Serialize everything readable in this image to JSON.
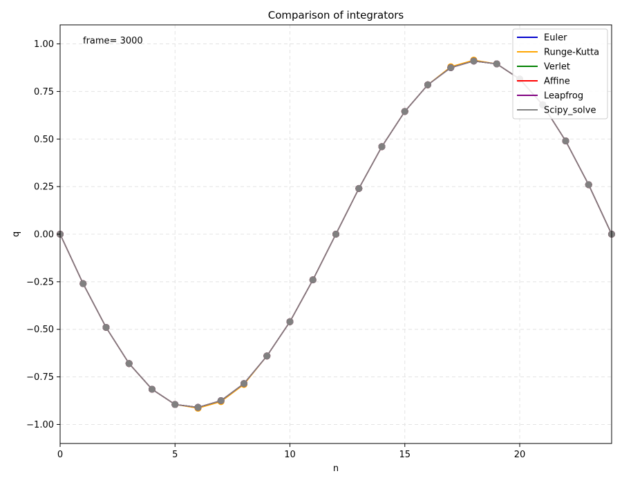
{
  "chart_data": {
    "type": "line",
    "title": "Comparison of integrators",
    "xlabel": "n",
    "ylabel": "q",
    "annotation": "frame= 3000",
    "xlim": [
      0,
      24
    ],
    "ylim": [
      -1.1,
      1.1
    ],
    "xticks": [
      0,
      5,
      10,
      15,
      20
    ],
    "yticks": [
      -1.0,
      -0.75,
      -0.5,
      -0.25,
      0.0,
      0.25,
      0.5,
      0.75,
      1.0
    ],
    "xtick_labels": [
      "0",
      "5",
      "10",
      "15",
      "20"
    ],
    "ytick_labels": [
      "−1.00",
      "−0.75",
      "−0.50",
      "−0.25",
      "0.00",
      "0.25",
      "0.50",
      "0.75",
      "1.00"
    ],
    "grid": true,
    "legend_position": "top-right",
    "markers": true,
    "x": [
      0,
      1,
      2,
      3,
      4,
      5,
      6,
      7,
      8,
      9,
      10,
      11,
      12,
      13,
      14,
      15,
      16,
      17,
      18,
      19,
      20,
      21,
      22,
      23,
      24
    ],
    "series": [
      {
        "name": "Euler",
        "color": "#0000cc",
        "values": [
          0.0,
          -0.26,
          -0.49,
          -0.68,
          -0.815,
          -0.895,
          -0.91,
          -0.875,
          -0.785,
          -0.64,
          -0.46,
          -0.24,
          0.0,
          0.24,
          0.46,
          0.645,
          0.785,
          0.875,
          0.91,
          0.895,
          0.815,
          0.68,
          0.49,
          0.26,
          0.0
        ]
      },
      {
        "name": "Runge-Kutta",
        "color": "#ffa500",
        "values": [
          0.0,
          -0.26,
          -0.49,
          -0.68,
          -0.815,
          -0.895,
          -0.915,
          -0.88,
          -0.79,
          -0.64,
          -0.46,
          -0.24,
          0.0,
          0.24,
          0.46,
          0.645,
          0.785,
          0.88,
          0.915,
          0.895,
          0.815,
          0.68,
          0.49,
          0.26,
          0.0
        ]
      },
      {
        "name": "Verlet",
        "color": "#008000",
        "values": [
          0.0,
          -0.26,
          -0.49,
          -0.68,
          -0.815,
          -0.895,
          -0.91,
          -0.875,
          -0.785,
          -0.64,
          -0.46,
          -0.24,
          0.0,
          0.24,
          0.46,
          0.645,
          0.785,
          0.875,
          0.91,
          0.895,
          0.815,
          0.68,
          0.49,
          0.26,
          0.0
        ]
      },
      {
        "name": "Affine",
        "color": "#ff0000",
        "values": [
          0.0,
          -0.26,
          -0.49,
          -0.68,
          -0.815,
          -0.895,
          -0.91,
          -0.875,
          -0.785,
          -0.64,
          -0.46,
          -0.24,
          0.0,
          0.24,
          0.46,
          0.645,
          0.785,
          0.875,
          0.91,
          0.895,
          0.815,
          0.68,
          0.49,
          0.26,
          0.0
        ]
      },
      {
        "name": "Leapfrog",
        "color": "#800080",
        "values": [
          0.0,
          -0.26,
          -0.49,
          -0.68,
          -0.815,
          -0.895,
          -0.91,
          -0.875,
          -0.785,
          -0.64,
          -0.46,
          -0.24,
          0.0,
          0.24,
          0.46,
          0.645,
          0.785,
          0.875,
          0.91,
          0.895,
          0.815,
          0.68,
          0.49,
          0.26,
          0.0
        ]
      },
      {
        "name": "Scipy_solve",
        "color": "#808080",
        "values": [
          0.0,
          -0.26,
          -0.49,
          -0.68,
          -0.815,
          -0.895,
          -0.91,
          -0.875,
          -0.785,
          -0.64,
          -0.46,
          -0.24,
          0.0,
          0.24,
          0.46,
          0.645,
          0.785,
          0.875,
          0.91,
          0.895,
          0.815,
          0.68,
          0.49,
          0.26,
          0.0
        ]
      }
    ]
  }
}
